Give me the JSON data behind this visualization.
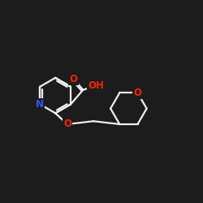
{
  "bg_color": "#1c1c1c",
  "bond_color": "#f0f0f0",
  "N_color": "#3355ff",
  "O_color": "#ff2200",
  "bond_width": 1.6,
  "fig_size": [
    2.5,
    2.5
  ],
  "dpi": 100,
  "xlim": [
    0,
    10
  ],
  "ylim": [
    0,
    10
  ]
}
